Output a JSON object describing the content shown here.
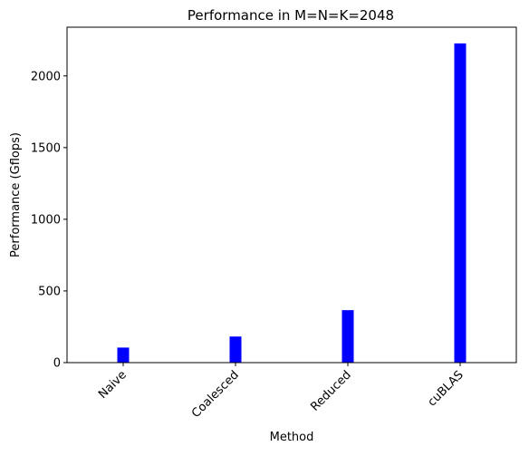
{
  "chart_data": {
    "type": "bar",
    "title": "Performance in M=N=K=2048",
    "xlabel": "Method",
    "ylabel": "Performance (Gflops)",
    "categories": [
      "Naive",
      "Coalesced",
      "Reduced",
      "cuBLAS"
    ],
    "values": [
      105,
      182,
      366,
      2227
    ],
    "ylim": [
      0,
      2340
    ],
    "yticks": [
      0,
      500,
      1000,
      1500,
      2000
    ],
    "ytick_labels": [
      "0",
      "500",
      "1000",
      "1500",
      "2000"
    ],
    "bar_color": "#0000ff",
    "grid": false,
    "legend": "none",
    "xtick_rotation": "45 degrees"
  }
}
